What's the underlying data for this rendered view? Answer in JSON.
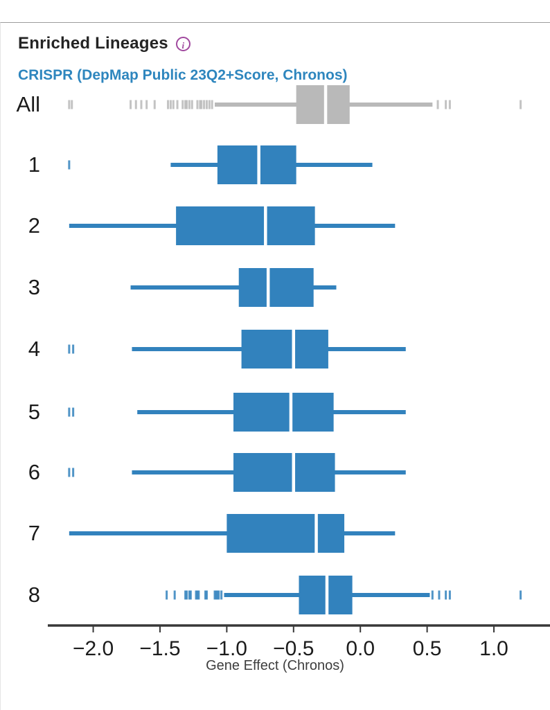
{
  "header": {
    "title": "Enriched Lineages",
    "info_icon": "i",
    "subtitle": "CRISPR (DepMap Public 23Q2+Score, Chronos)"
  },
  "colors": {
    "box_blue": "#3282bd",
    "box_gray": "#b9b9b9",
    "median_line": "#ffffff",
    "axis": "#383838",
    "tick_text": "#1c1c1c",
    "category_text": "#1a1a1a",
    "subtitle_blue": "#2e86be",
    "info_purple": "#a0489e"
  },
  "chart_data": {
    "type": "boxplot",
    "orientation": "horizontal",
    "title": "Enriched Lineages",
    "subtitle": "CRISPR (DepMap Public 23Q2+Score, Chronos)",
    "xlabel": "Gene Effect (Chronos)",
    "xlim": [
      -2.34,
      1.42
    ],
    "xticks": [
      -2.0,
      -1.5,
      -1.0,
      -0.5,
      0.0,
      0.5,
      1.0
    ],
    "xtick_labels": [
      "−2.0",
      "−1.5",
      "−1.0",
      "−0.5",
      "0.0",
      "0.5",
      "1.0"
    ],
    "grid": false,
    "legend": "none",
    "categories": [
      "All",
      "1",
      "2",
      "3",
      "4",
      "5",
      "6",
      "7",
      "8"
    ],
    "series": [
      {
        "category": "All",
        "color": "gray",
        "whisker_low": -1.09,
        "q1": -0.48,
        "median": -0.26,
        "q3": -0.08,
        "whisker_high": 0.54,
        "outliers": [
          -2.18,
          -2.16,
          -1.72,
          -1.68,
          -1.64,
          -1.6,
          -1.54,
          -1.44,
          -1.42,
          -1.4,
          -1.37,
          -1.33,
          -1.31,
          -1.3,
          -1.28,
          -1.26,
          -1.22,
          -1.2,
          -1.19,
          -1.17,
          -1.15,
          -1.13,
          -1.11,
          0.58,
          0.64,
          0.67,
          1.2
        ]
      },
      {
        "category": "1",
        "color": "blue",
        "whisker_low": -1.42,
        "q1": -1.07,
        "median": -0.76,
        "q3": -0.48,
        "whisker_high": 0.09,
        "outliers": [
          -2.18
        ]
      },
      {
        "category": "2",
        "color": "blue",
        "whisker_low": -2.18,
        "q1": -1.38,
        "median": -0.71,
        "q3": -0.34,
        "whisker_high": 0.26,
        "outliers": []
      },
      {
        "category": "3",
        "color": "blue",
        "whisker_low": -1.72,
        "q1": -0.91,
        "median": -0.69,
        "q3": -0.35,
        "whisker_high": -0.18,
        "outliers": []
      },
      {
        "category": "4",
        "color": "blue",
        "whisker_low": -1.71,
        "q1": -0.89,
        "median": -0.5,
        "q3": -0.24,
        "whisker_high": 0.34,
        "outliers": [
          -2.18,
          -2.15
        ]
      },
      {
        "category": "5",
        "color": "blue",
        "whisker_low": -1.67,
        "q1": -0.95,
        "median": -0.52,
        "q3": -0.2,
        "whisker_high": 0.34,
        "outliers": [
          -2.18,
          -2.15
        ]
      },
      {
        "category": "6",
        "color": "blue",
        "whisker_low": -1.71,
        "q1": -0.95,
        "median": -0.5,
        "q3": -0.19,
        "whisker_high": 0.34,
        "outliers": [
          -2.18,
          -2.15
        ]
      },
      {
        "category": "7",
        "color": "blue",
        "whisker_low": -2.18,
        "q1": -1.0,
        "median": -0.33,
        "q3": -0.12,
        "whisker_high": 0.26,
        "outliers": []
      },
      {
        "category": "8",
        "color": "blue",
        "whisker_low": -1.02,
        "q1": -0.46,
        "median": -0.25,
        "q3": -0.06,
        "whisker_high": 0.52,
        "outliers": [
          -1.45,
          -1.39,
          -1.31,
          -1.3,
          -1.28,
          -1.27,
          -1.23,
          -1.22,
          -1.21,
          -1.16,
          -1.15,
          -1.09,
          -1.08,
          -1.07,
          -1.06,
          -1.04,
          0.54,
          0.59,
          0.64,
          0.67,
          1.2
        ]
      }
    ]
  }
}
